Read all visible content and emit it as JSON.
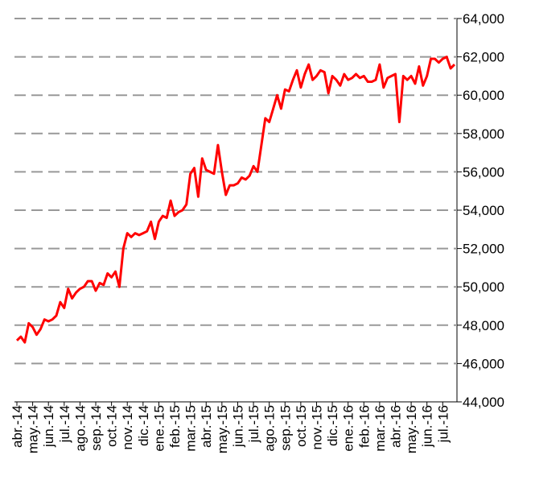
{
  "chart_data": {
    "type": "line",
    "categories": [
      "abr.-14",
      null,
      null,
      null,
      "may.-14",
      null,
      null,
      null,
      "jun.-14",
      null,
      null,
      null,
      "jul.-14",
      null,
      null,
      null,
      "ago.-14",
      null,
      null,
      null,
      "sep.-14",
      null,
      null,
      null,
      "oct.-14",
      null,
      null,
      null,
      "nov.-14",
      null,
      null,
      null,
      "dic.-14",
      null,
      null,
      null,
      "ene.-15",
      null,
      null,
      null,
      "feb.-15",
      null,
      null,
      null,
      "mar.-15",
      null,
      null,
      null,
      "abr.-15",
      null,
      null,
      null,
      "may.-15",
      null,
      null,
      null,
      "jun.-15",
      null,
      null,
      null,
      "jul.-15",
      null,
      null,
      null,
      "ago.-15",
      null,
      null,
      null,
      "sep.-15",
      null,
      null,
      null,
      "oct.-15",
      null,
      null,
      null,
      "nov.-15",
      null,
      null,
      null,
      "dic.-15",
      null,
      null,
      null,
      "ene.-16",
      null,
      null,
      null,
      "feb.-16",
      null,
      null,
      null,
      "mar.-16",
      null,
      null,
      null,
      "abr.-16",
      null,
      null,
      null,
      "may.-16",
      null,
      null,
      null,
      "jun.-16",
      null,
      null,
      null,
      "jul.-16",
      null,
      null,
      null
    ],
    "values": [
      47200,
      47400,
      47100,
      48100,
      47900,
      47500,
      47800,
      48300,
      48200,
      48300,
      48500,
      49200,
      48900,
      49900,
      49400,
      49700,
      49900,
      50000,
      50300,
      50300,
      49800,
      50200,
      50100,
      50700,
      50500,
      50800,
      50000,
      52000,
      52800,
      52600,
      52800,
      52700,
      52800,
      52900,
      53400,
      52500,
      53400,
      53700,
      53600,
      54500,
      53700,
      53900,
      54000,
      54300,
      55900,
      56200,
      54700,
      56700,
      56100,
      56000,
      55900,
      57400,
      56000,
      54800,
      55300,
      55300,
      55400,
      55700,
      55600,
      55800,
      56300,
      56000,
      57400,
      58800,
      58600,
      59300,
      60000,
      59300,
      60300,
      60200,
      60800,
      61300,
      60400,
      61100,
      61600,
      60800,
      61000,
      61300,
      61200,
      60100,
      61000,
      60800,
      60500,
      61100,
      60800,
      60900,
      61100,
      60900,
      61000,
      60700,
      60700,
      60800,
      61600,
      60400,
      60900,
      61000,
      61100,
      58600,
      61000,
      60800,
      61000,
      60600,
      61500,
      60500,
      61000,
      61900,
      61900,
      61700,
      61900,
      62000,
      61400,
      61600
    ],
    "color": "#ff0000",
    "ylim": [
      44000,
      64000
    ],
    "yticks": [
      {
        "value": 44000,
        "label": "44,000"
      },
      {
        "value": 46000,
        "label": "46,000"
      },
      {
        "value": 48000,
        "label": "48,000"
      },
      {
        "value": 50000,
        "label": "50,000"
      },
      {
        "value": 52000,
        "label": "52,000"
      },
      {
        "value": 54000,
        "label": "54,000"
      },
      {
        "value": 56000,
        "label": "56,000"
      },
      {
        "value": 58000,
        "label": "58,000"
      },
      {
        "value": 60000,
        "label": "60,000"
      },
      {
        "value": 62000,
        "label": "62,000"
      },
      {
        "value": 64000,
        "label": "64,000"
      }
    ],
    "grid": true
  }
}
